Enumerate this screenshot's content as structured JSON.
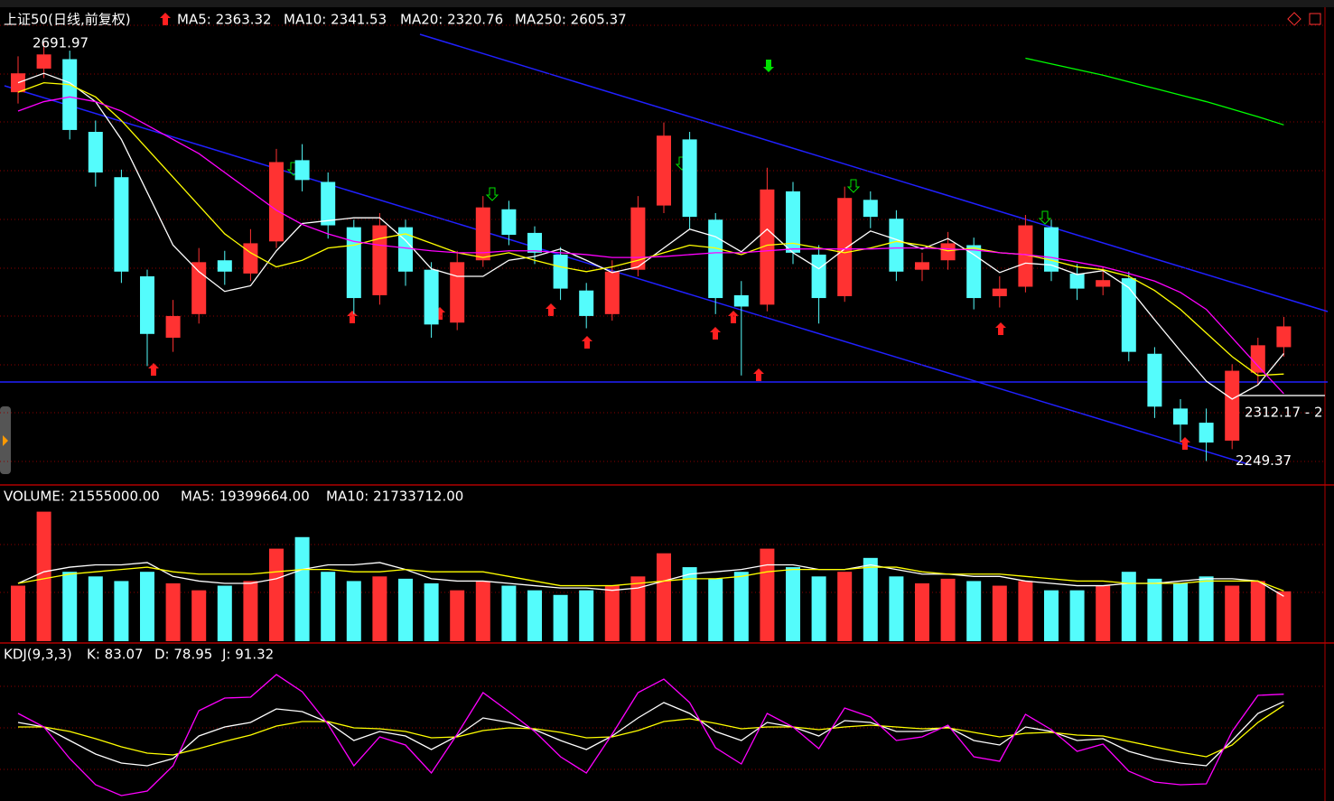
{
  "chart_data": [
    {
      "type": "candlestick",
      "title": "上证50(日线,前复权)",
      "up_color": "#ff3232",
      "down_color": "#54fcfc",
      "ylim": [
        2226,
        2730
      ],
      "open": [
        2640,
        2665,
        2675,
        2598,
        2550,
        2445,
        2380,
        2405,
        2462,
        2448,
        2482,
        2568,
        2545,
        2497,
        2425,
        2497,
        2452,
        2396,
        2462,
        2516,
        2491,
        2468,
        2430,
        2405,
        2452,
        2520,
        2590,
        2505,
        2425,
        2415,
        2535,
        2468,
        2424,
        2526,
        2506,
        2452,
        2462,
        2478,
        2424,
        2434,
        2497,
        2448,
        2434,
        2443,
        2363,
        2305,
        2290,
        2271,
        2343,
        2370
      ],
      "high": [
        2678,
        2691.97,
        2684,
        2610,
        2558,
        2452,
        2420,
        2475,
        2472,
        2495,
        2580,
        2585,
        2555,
        2505,
        2512,
        2505,
        2460,
        2472,
        2530,
        2525,
        2498,
        2476,
        2438,
        2462,
        2530,
        2608,
        2598,
        2512,
        2440,
        2560,
        2545,
        2478,
        2540,
        2535,
        2515,
        2470,
        2492,
        2486,
        2445,
        2510,
        2505,
        2458,
        2455,
        2450,
        2370,
        2315,
        2305,
        2352,
        2380,
        2402
      ],
      "low": [
        2628,
        2655,
        2590,
        2540,
        2438,
        2350,
        2365,
        2395,
        2436,
        2440,
        2475,
        2535,
        2485,
        2405,
        2415,
        2435,
        2380,
        2388,
        2455,
        2478,
        2458,
        2420,
        2390,
        2398,
        2445,
        2512,
        2495,
        2405,
        2340,
        2408,
        2458,
        2395,
        2418,
        2496,
        2440,
        2440,
        2452,
        2410,
        2412,
        2428,
        2440,
        2420,
        2425,
        2355,
        2295,
        2270,
        2249.37,
        2262,
        2330,
        2360
      ],
      "close": [
        2660,
        2680,
        2600,
        2555,
        2450,
        2384,
        2403,
        2460,
        2450,
        2480,
        2566,
        2547,
        2499,
        2422,
        2499,
        2450,
        2394,
        2460,
        2518,
        2489,
        2470,
        2432,
        2403,
        2450,
        2518,
        2594,
        2508,
        2422,
        2413,
        2537,
        2470,
        2422,
        2528,
        2508,
        2450,
        2460,
        2480,
        2422,
        2432,
        2499,
        2450,
        2432,
        2441,
        2365,
        2307,
        2288,
        2269,
        2345,
        2372,
        2392
      ],
      "series": [
        {
          "name": "MA5: 2363.32",
          "color": "#ffffff",
          "values": [
            2650,
            2660,
            2650,
            2630,
            2590,
            2534,
            2478,
            2450,
            2429,
            2435,
            2472,
            2501,
            2504,
            2507,
            2507,
            2483,
            2453,
            2445,
            2445,
            2462,
            2466,
            2474,
            2462,
            2449,
            2455,
            2475,
            2495,
            2487,
            2471,
            2495,
            2470,
            2453,
            2474,
            2493,
            2484,
            2474,
            2485,
            2468,
            2449,
            2459,
            2457,
            2447,
            2451,
            2433,
            2399,
            2366,
            2334,
            2315,
            2330,
            2363.32
          ]
        },
        {
          "name": "MA10: 2341.53",
          "color": "#ffff00",
          "values": [
            2640,
            2650,
            2648,
            2635,
            2610,
            2580,
            2550,
            2520,
            2490,
            2470,
            2455,
            2462,
            2475,
            2478,
            2485,
            2490,
            2480,
            2470,
            2465,
            2470,
            2462,
            2455,
            2450,
            2455,
            2462,
            2470,
            2478,
            2475,
            2468,
            2478,
            2480,
            2475,
            2470,
            2475,
            2482,
            2478,
            2472,
            2475,
            2470,
            2468,
            2462,
            2455,
            2452,
            2445,
            2430,
            2410,
            2385,
            2360,
            2340,
            2341.53
          ]
        },
        {
          "name": "MA20: 2320.76",
          "color": "#ff00ff",
          "values": [
            2620,
            2630,
            2635,
            2630,
            2620,
            2605,
            2590,
            2575,
            2555,
            2535,
            2515,
            2500,
            2490,
            2482,
            2478,
            2475,
            2472,
            2470,
            2470,
            2472,
            2472,
            2470,
            2468,
            2465,
            2465,
            2466,
            2468,
            2470,
            2470,
            2472,
            2474,
            2474,
            2474,
            2474,
            2475,
            2475,
            2474,
            2473,
            2470,
            2468,
            2465,
            2460,
            2455,
            2448,
            2440,
            2428,
            2410,
            2380,
            2350,
            2320.76
          ]
        },
        {
          "name": "MA250: 2605.37",
          "color": "#00ff00",
          "values": [
            null,
            null,
            null,
            null,
            null,
            null,
            null,
            null,
            null,
            null,
            null,
            null,
            null,
            null,
            null,
            null,
            null,
            null,
            null,
            null,
            null,
            null,
            null,
            null,
            null,
            null,
            null,
            null,
            null,
            null,
            null,
            null,
            null,
            null,
            null,
            null,
            null,
            null,
            null,
            2676,
            2670,
            2664,
            2658,
            2651,
            2644,
            2637,
            2630,
            2622,
            2614,
            2605.37
          ]
        }
      ],
      "annotations": [
        "2691.97",
        "2312.17 - 2",
        "2249.37"
      ]
    },
    {
      "type": "volume",
      "title": "VOLUME: 21555000.00",
      "ylim": [
        0,
        66000000
      ],
      "values": [
        24000000,
        56000000,
        30000000,
        28000000,
        26000000,
        30000000,
        25000000,
        22000000,
        24000000,
        26000000,
        40000000,
        45000000,
        30000000,
        26000000,
        28000000,
        27000000,
        25000000,
        22000000,
        26000000,
        24000000,
        22000000,
        20000000,
        22000000,
        24000000,
        28000000,
        38000000,
        32000000,
        27000000,
        30000000,
        40000000,
        32000000,
        28000000,
        30000000,
        36000000,
        28000000,
        25000000,
        27000000,
        26000000,
        24000000,
        26000000,
        22000000,
        22000000,
        24000000,
        30000000,
        27000000,
        25000000,
        28000000,
        24000000,
        26000000,
        21555000
      ],
      "series": [
        {
          "name": "MA5: 19399664.00",
          "color": "#ffffff",
          "values": [
            25000000,
            30000000,
            32000000,
            33000000,
            33000000,
            34000000,
            28000000,
            26000000,
            25000000,
            25000000,
            27000000,
            31000000,
            33000000,
            33000000,
            34000000,
            31000000,
            27000000,
            26000000,
            26000000,
            25000000,
            24000000,
            23000000,
            23000000,
            22000000,
            23000000,
            26000000,
            29000000,
            30000000,
            31000000,
            33000000,
            33000000,
            31000000,
            31000000,
            33000000,
            31000000,
            29000000,
            29000000,
            28000000,
            28000000,
            26000000,
            25000000,
            24000000,
            24000000,
            25000000,
            25000000,
            26000000,
            27000000,
            27000000,
            26000000,
            19399664
          ]
        },
        {
          "name": "MA10: 21733712.00",
          "color": "#ffff00",
          "values": [
            25000000,
            27000000,
            29000000,
            30000000,
            31000000,
            32000000,
            30000000,
            29000000,
            29000000,
            29000000,
            30000000,
            31000000,
            31000000,
            30000000,
            30000000,
            31000000,
            30000000,
            30000000,
            30000000,
            28000000,
            26000000,
            24000000,
            24000000,
            24000000,
            25000000,
            26000000,
            27000000,
            27000000,
            28000000,
            30000000,
            31000000,
            31000000,
            31000000,
            32000000,
            32000000,
            30000000,
            29000000,
            29000000,
            29000000,
            28000000,
            27000000,
            26000000,
            26000000,
            25000000,
            25000000,
            25000000,
            26000000,
            26000000,
            26000000,
            21733712
          ]
        }
      ]
    },
    {
      "type": "line",
      "title": "KDJ(9,3,3)",
      "ylim": [
        -25,
        125
      ],
      "series": [
        {
          "name": "K: 83.07",
          "color": "#ffffff",
          "values": [
            60,
            55,
            40,
            25,
            15,
            12,
            20,
            45,
            55,
            60,
            75,
            72,
            60,
            40,
            50,
            45,
            30,
            45,
            65,
            60,
            52,
            40,
            30,
            45,
            65,
            82,
            70,
            50,
            40,
            60,
            55,
            45,
            62,
            60,
            50,
            50,
            55,
            40,
            35,
            55,
            50,
            40,
            42,
            28,
            20,
            15,
            12,
            40,
            70,
            83.07
          ]
        },
        {
          "name": "D: 78.95",
          "color": "#ffff00",
          "values": [
            55,
            55,
            50,
            42,
            33,
            26,
            24,
            31,
            39,
            46,
            56,
            61,
            61,
            54,
            53,
            50,
            43,
            44,
            51,
            54,
            53,
            49,
            43,
            44,
            51,
            61,
            64,
            59,
            53,
            55,
            55,
            52,
            55,
            57,
            55,
            53,
            54,
            49,
            44,
            48,
            49,
            46,
            45,
            39,
            33,
            27,
            22,
            35,
            60,
            78.95
          ]
        },
        {
          "name": "J: 91.32",
          "color": "#ff00ff",
          "values": [
            70,
            55,
            20,
            -9,
            -21,
            -16,
            12,
            73,
            87,
            88,
            113,
            94,
            58,
            12,
            44,
            35,
            4,
            47,
            93,
            72,
            50,
            22,
            4,
            47,
            93,
            108,
            82,
            32,
            14,
            70,
            55,
            31,
            76,
            66,
            40,
            44,
            57,
            22,
            17,
            69,
            52,
            28,
            36,
            6,
            -6,
            -9,
            -8,
            50,
            90,
            91.32
          ]
        }
      ]
    }
  ]
}
